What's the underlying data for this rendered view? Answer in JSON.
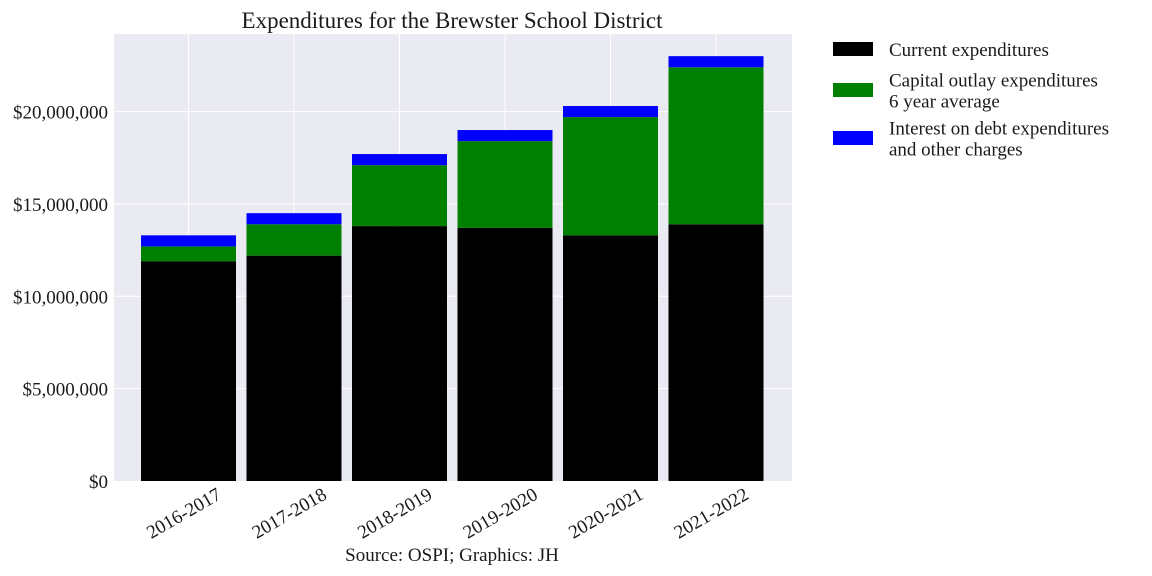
{
  "chart_data": {
    "type": "bar",
    "stacked": true,
    "title": "Expenditures for the Brewster School District",
    "xlabel": "",
    "ylabel": "",
    "caption": "Source: OSPI; Graphics: JH",
    "categories": [
      "2016-2017",
      "2017-2018",
      "2018-2019",
      "2019-2020",
      "2020-2021",
      "2021-2022"
    ],
    "series": [
      {
        "name": "Current expenditures",
        "color": "#000000",
        "values": [
          11900000,
          12200000,
          13800000,
          13700000,
          13300000,
          13900000
        ]
      },
      {
        "name": "Capital outlay expenditures\n6 year average",
        "color": "#008000",
        "values": [
          800000,
          1700000,
          3300000,
          4700000,
          6400000,
          8500000
        ]
      },
      {
        "name": "Interest on debt expenditures\nand other charges",
        "color": "#0000ff",
        "values": [
          600000,
          600000,
          600000,
          600000,
          600000,
          600000
        ]
      }
    ],
    "ylim": [
      0,
      24200000
    ],
    "yticks": [
      0,
      5000000,
      10000000,
      15000000,
      20000000
    ],
    "ytick_labels": [
      "$0",
      "$5,000,000",
      "$10,000,000",
      "$15,000,000",
      "$20,000,000"
    ],
    "grid": true,
    "legend_position": "outside-right",
    "background": "#eaeaf2"
  }
}
